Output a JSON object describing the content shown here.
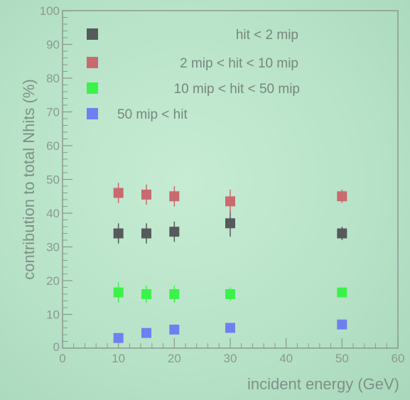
{
  "colors": {
    "background": "#bde6cc",
    "axis": "#8a9a90"
  },
  "chart_data": {
    "type": "scatter",
    "title": "",
    "xlabel": "incident energy (GeV)",
    "ylabel": "contribution to total Nhits (%)",
    "xlim": [
      0,
      60
    ],
    "ylim": [
      0,
      100
    ],
    "x_ticks": [
      0,
      10,
      20,
      30,
      40,
      50,
      60
    ],
    "y_ticks": [
      10,
      20,
      30,
      40,
      50,
      60,
      70,
      80,
      90,
      100
    ],
    "y_tick_labels": [
      "10",
      "20",
      "30",
      "40",
      "50",
      "60",
      "70",
      "80",
      "90",
      "100"
    ],
    "x_tick_labels": [
      "0",
      "10",
      "20",
      "30",
      "40",
      "50",
      "60"
    ],
    "y_zero_label": "0",
    "legend_position": "top-left",
    "series": [
      {
        "name": "hit <   2 mip",
        "color": "#565a5a",
        "x": [
          10,
          15,
          20,
          30,
          50
        ],
        "y": [
          34,
          34,
          34.5,
          37,
          34
        ],
        "err": [
          3,
          3,
          3,
          4,
          2
        ]
      },
      {
        "name": "2 mip < hit < 10 mip",
        "color": "#c86a6e",
        "x": [
          10,
          15,
          20,
          30,
          50
        ],
        "y": [
          46,
          45.5,
          45,
          43.5,
          45
        ],
        "err": [
          3,
          3,
          3,
          3.5,
          2
        ]
      },
      {
        "name": "10 mip < hit < 50 mip",
        "color": "#3cf24a",
        "x": [
          10,
          15,
          20,
          30,
          50
        ],
        "y": [
          16.5,
          16,
          16,
          16,
          16.5
        ],
        "err": [
          3,
          2.5,
          2.5,
          2,
          1
        ]
      },
      {
        "name": "50 mip < hit",
        "color": "#6f7ff0",
        "x": [
          10,
          15,
          20,
          30,
          50
        ],
        "y": [
          3,
          4.5,
          5.5,
          6,
          7
        ],
        "err": [
          1,
          1,
          1,
          1,
          1
        ]
      }
    ]
  }
}
